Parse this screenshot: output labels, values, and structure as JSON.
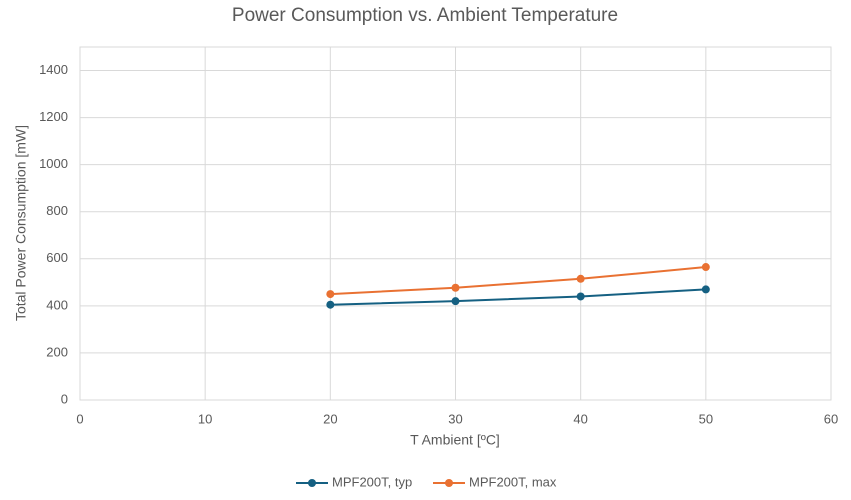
{
  "chart_data": {
    "type": "line",
    "title": "Power Consumption vs. Ambient Temperature",
    "x_label": "T Ambient [ºC]",
    "y_label": "Total Power Consumption [mW]",
    "x": [
      20,
      30,
      40,
      50
    ],
    "series": [
      {
        "name": "MPF200T, typ",
        "color": "#156082",
        "values": [
          405,
          420,
          440,
          470
        ]
      },
      {
        "name": "MPF200T, max",
        "color": "#e97132",
        "values": [
          450,
          477,
          515,
          565
        ]
      }
    ],
    "xlim": [
      0,
      60
    ],
    "xticks": [
      0,
      10,
      20,
      30,
      40,
      50,
      60
    ],
    "ylim": [
      0,
      1500
    ],
    "yticks": [
      0,
      200,
      400,
      600,
      800,
      1000,
      1200,
      1400
    ],
    "grid": true,
    "legend": "bottom"
  }
}
